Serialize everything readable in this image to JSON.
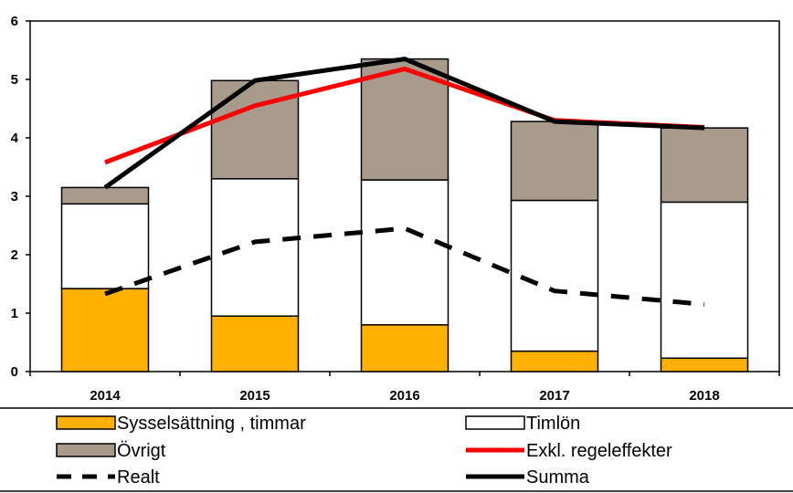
{
  "chart_data": {
    "type": "bar",
    "stacked": true,
    "title": "",
    "xlabel": "",
    "ylabel": "",
    "ylim": [
      0,
      6
    ],
    "y_ticks": [
      "0",
      "1",
      "2",
      "3",
      "4",
      "5",
      "6"
    ],
    "categories": [
      "2014",
      "2015",
      "2016",
      "2017",
      "2018"
    ],
    "grid": false,
    "legend_position": "bottom",
    "series": [
      {
        "name": "Sysselsättning , timmar",
        "kind": "bar",
        "color": "#FFB000",
        "values": [
          1.42,
          0.95,
          0.8,
          0.35,
          0.23
        ]
      },
      {
        "name": "Timlön",
        "kind": "bar",
        "color": "#FFFFFF",
        "values": [
          1.45,
          2.35,
          2.48,
          2.58,
          2.67
        ]
      },
      {
        "name": "Övrigt",
        "kind": "bar",
        "color": "#A89B8C",
        "values": [
          0.28,
          1.68,
          2.07,
          1.35,
          1.27
        ]
      },
      {
        "name": "Exkl. regeleffekter",
        "kind": "line",
        "color": "#FF0000",
        "style": "solid",
        "values": [
          3.58,
          4.55,
          5.18,
          4.3,
          4.18
        ]
      },
      {
        "name": "Realt",
        "kind": "line",
        "color": "#000000",
        "style": "dashed",
        "values": [
          1.33,
          2.22,
          2.45,
          1.38,
          1.15
        ]
      },
      {
        "name": "Summa",
        "kind": "line",
        "color": "#000000",
        "style": "solid",
        "values": [
          3.15,
          4.98,
          5.35,
          4.28,
          4.17
        ]
      }
    ],
    "legend": [
      {
        "series": 0,
        "label": "Sysselsättning , timmar"
      },
      {
        "series": 1,
        "label": "Timlön"
      },
      {
        "series": 2,
        "label": "Övrigt"
      },
      {
        "series": 3,
        "label": "Exkl. regeleffekter"
      },
      {
        "series": 4,
        "label": "Realt"
      },
      {
        "series": 5,
        "label": "Summa"
      }
    ]
  }
}
